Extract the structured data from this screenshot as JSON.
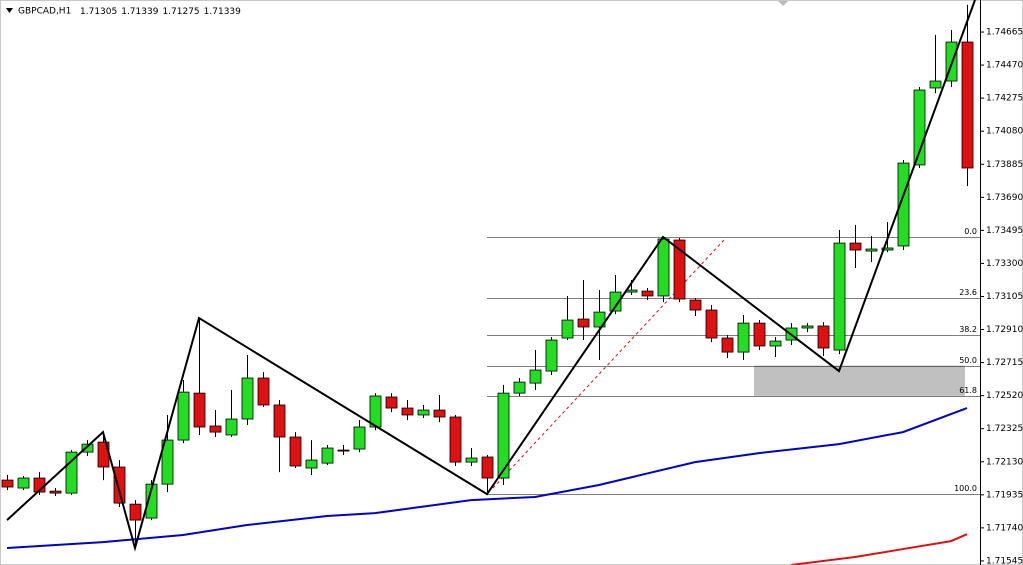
{
  "chart_data": {
    "type": "candlestick",
    "title": "GBPCAD,H1",
    "quote": [
      1.71305,
      1.71339,
      1.71275,
      1.71339
    ],
    "up_color": "#22dd22",
    "down_color": "#e01010",
    "ylim": [
      1.71521,
      1.74854
    ],
    "yticks": [
      1.74665,
      {
        "value": 1.7447,
        "label": "1.74470"
      },
      1.74275,
      {
        "value": 1.7408,
        "label": "1.74080"
      },
      1.73885,
      {
        "value": 1.7369,
        "label": "1.73690"
      },
      1.73495,
      {
        "value": 1.733,
        "label": "1.73300"
      },
      1.73105,
      {
        "value": 1.7291,
        "label": "1.72910"
      },
      1.72715,
      {
        "value": 1.7252,
        "label": "1.72520"
      },
      1.72325,
      {
        "value": 1.7213,
        "label": "1.72130"
      },
      1.71935,
      {
        "value": 1.7174,
        "label": "1.71740"
      },
      1.71545
    ],
    "open": [
      1.72022,
      1.71975,
      1.72034,
      1.71957,
      1.71945,
      1.72187,
      1.72246,
      1.72099,
      1.7188,
      1.71798,
      1.71998,
      1.72258,
      1.72535,
      1.72341,
      1.72288,
      1.72382,
      1.72624,
      1.72465,
      1.72276,
      1.72093,
      1.72122,
      1.72199,
      1.72205,
      1.72335,
      1.72512,
      1.72447,
      1.72406,
      1.72435,
      1.72394,
      1.72128,
      1.72158,
      1.72034,
      1.72535,
      1.72594,
      1.72665,
      1.7286,
      1.72972,
      1.72925,
      1.73019,
      1.73131,
      1.73137,
      1.73108,
      1.73438,
      1.73084,
      1.73025,
      1.7286,
      1.72777,
      1.72948,
      1.72813,
      1.72848,
      1.72919,
      1.72931,
      1.72789,
      1.7342,
      1.73373,
      1.73379,
      1.73403,
      1.73881,
      1.74335,
      1.74376,
      1.74606
    ],
    "high": [
      1.72052,
      1.72046,
      1.72069,
      1.71975,
      1.72199,
      1.72258,
      1.72305,
      1.7214,
      1.71904,
      1.72022,
      1.72406,
      1.72612,
      1.72978,
      1.72435,
      1.72553,
      1.7276,
      1.72659,
      1.72494,
      1.72305,
      1.72258,
      1.72229,
      1.72229,
      1.72376,
      1.72535,
      1.72535,
      1.72494,
      1.72465,
      1.72524,
      1.72406,
      1.72211,
      1.7217,
      1.72583,
      1.72624,
      1.72789,
      1.72866,
      1.73108,
      1.73202,
      1.73143,
      1.73232,
      1.73202,
      1.73155,
      1.73456,
      1.7345,
      1.73096,
      1.73055,
      1.72878,
      1.72996,
      1.72966,
      1.72866,
      1.72948,
      1.72948,
      1.72954,
      1.73497,
      1.73527,
      1.73462,
      1.73544,
      1.7391,
      1.74341,
      1.74648,
      1.74677,
      1.74825
    ],
    "low": [
      1.71963,
      1.71963,
      1.71934,
      1.71928,
      1.71934,
      1.72164,
      1.72022,
      1.71863,
      1.71621,
      1.71786,
      1.71951,
      1.7224,
      1.72288,
      1.72276,
      1.72276,
      1.72347,
      1.72453,
      1.72069,
      1.72093,
      1.72052,
      1.72111,
      1.7217,
      1.72187,
      1.72317,
      1.72423,
      1.72376,
      1.72388,
      1.72364,
      1.72105,
      1.72105,
      1.71939,
      1.71993,
      1.72518,
      1.72553,
      1.72642,
      1.72848,
      1.72848,
      1.7273,
      1.73001,
      1.73114,
      1.73084,
      1.73072,
      1.73072,
      1.7299,
      1.72836,
      1.72742,
      1.7273,
      1.72789,
      1.72748,
      1.72819,
      1.72895,
      1.72754,
      1.72765,
      1.73273,
      1.73308,
      1.73367,
      1.73379,
      1.73863,
      1.74305,
      1.74341,
      1.73757
    ],
    "close": [
      1.71981,
      1.72034,
      1.71951,
      1.71945,
      1.72187,
      1.72234,
      1.72099,
      1.71886,
      1.71786,
      1.71998,
      1.72258,
      1.72541,
      1.72335,
      1.72305,
      1.72382,
      1.72624,
      1.72465,
      1.72276,
      1.72105,
      1.7214,
      1.72211,
      1.72193,
      1.72335,
      1.72518,
      1.72447,
      1.72406,
      1.72435,
      1.72394,
      1.72128,
      1.72152,
      1.72034,
      1.72535,
      1.726,
      1.72671,
      1.72848,
      1.72966,
      1.72925,
      1.73013,
      1.73131,
      1.73143,
      1.73108,
      1.73444,
      1.7309,
      1.73025,
      1.7286,
      1.72777,
      1.72948,
      1.72813,
      1.72842,
      1.72919,
      1.72931,
      1.72801,
      1.7342,
      1.73379,
      1.73385,
      1.73391,
      1.73892,
      1.74323,
      1.74376,
      1.74606,
      1.73863
    ],
    "moving_averages": [
      {
        "color": "#0000cc",
        "x": [
          0,
          6,
          11,
          15,
          20,
          23,
          29,
          33,
          37,
          43,
          47,
          52,
          56,
          60
        ],
        "values": [
          1.71621,
          1.71656,
          1.71698,
          1.71757,
          1.7181,
          1.71827,
          1.71904,
          1.71922,
          1.71993,
          1.72128,
          1.72181,
          1.72234,
          1.72305,
          1.72447
        ]
      },
      {
        "color": "#dd1111",
        "x": [
          49,
          53,
          56,
          59,
          60
        ],
        "values": [
          1.71521,
          1.71568,
          1.71615,
          1.71662,
          1.71703
        ]
      }
    ],
    "zigzag": {
      "color": "#000000",
      "x": [
        0,
        6,
        8,
        12,
        30,
        41,
        52,
        60.5
      ],
      "values": [
        1.71786,
        1.72305,
        1.71621,
        1.72978,
        1.71939,
        1.73456,
        1.72665,
        1.74854
      ]
    },
    "fib": {
      "x": 30,
      "high": 1.73456,
      "low": 1.71939,
      "color": "#000000",
      "levels": [
        {
          "value": 0,
          "label": "0.0"
        },
        23.6,
        38.2,
        {
          "value": 50,
          "label": "50.0"
        },
        61.8,
        {
          "value": 100,
          "label": "100.0"
        }
      ]
    }
  }
}
